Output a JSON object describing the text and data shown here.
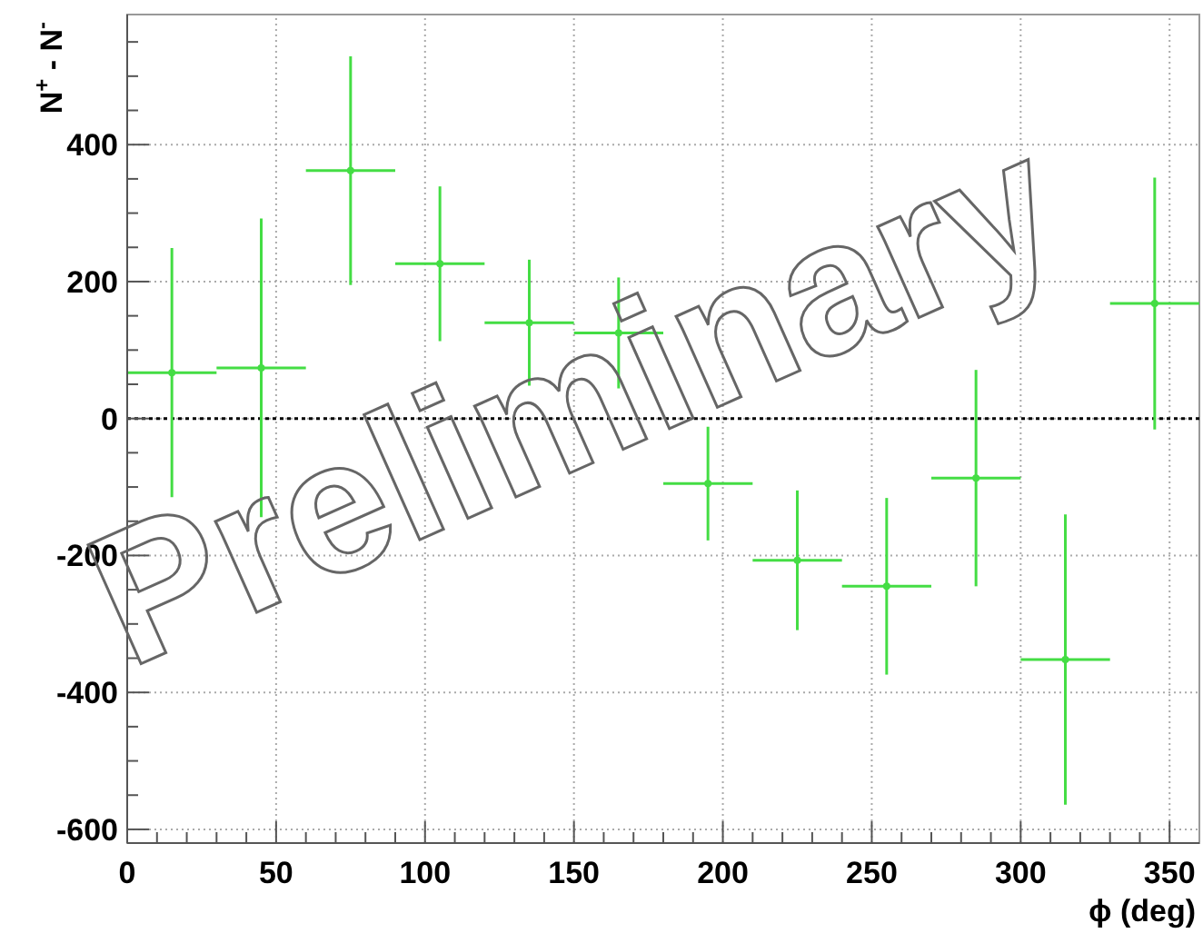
{
  "chart_data": {
    "type": "scatter",
    "xlabel": "ϕ (deg)",
    "ylabel": "N$^{+}$ - N$^{-}$",
    "x": [
      15,
      45,
      75,
      105,
      135,
      165,
      195,
      225,
      255,
      285,
      315,
      345
    ],
    "values": [
      67,
      74,
      362,
      226,
      140,
      125,
      -95,
      -207,
      -245,
      -87,
      -352,
      168
    ],
    "errors": [
      182,
      218,
      167,
      113,
      92,
      81,
      83,
      102,
      129,
      158,
      212,
      184
    ],
    "xerrors": [
      15,
      15,
      15,
      15,
      15,
      15,
      15,
      15,
      15,
      15,
      15,
      15
    ],
    "color": "#44dd44",
    "grid": true,
    "xlim": [
      0,
      360
    ],
    "ylim": [
      -620,
      590
    ],
    "xticks": [
      0,
      {
        "value": 10,
        "label": null
      },
      {
        "value": 20,
        "label": null
      },
      {
        "value": 30,
        "label": null
      },
      {
        "value": 40,
        "label": null
      },
      50,
      {
        "value": 60,
        "label": null
      },
      {
        "value": 70,
        "label": null
      },
      {
        "value": 80,
        "label": null
      },
      {
        "value": 90,
        "label": null
      },
      100,
      {
        "value": 110,
        "label": null
      },
      {
        "value": 120,
        "label": null
      },
      {
        "value": 130,
        "label": null
      },
      {
        "value": 140,
        "label": null
      },
      150,
      {
        "value": 160,
        "label": null
      },
      {
        "value": 170,
        "label": null
      },
      {
        "value": 180,
        "label": null
      },
      {
        "value": 190,
        "label": null
      },
      200,
      {
        "value": 210,
        "label": null
      },
      {
        "value": 220,
        "label": null
      },
      {
        "value": 230,
        "label": null
      },
      {
        "value": 240,
        "label": null
      },
      250,
      {
        "value": 260,
        "label": null
      },
      {
        "value": 270,
        "label": null
      },
      {
        "value": 280,
        "label": null
      },
      {
        "value": 290,
        "label": null
      },
      300,
      {
        "value": 310,
        "label": null
      },
      {
        "value": 320,
        "label": null
      },
      {
        "value": 330,
        "label": null
      },
      {
        "value": 340,
        "label": null
      },
      350
    ],
    "yticks": [
      -600,
      {
        "value": -550,
        "label": null
      },
      {
        "value": -500,
        "label": null
      },
      {
        "value": -450,
        "label": null
      },
      -400,
      {
        "value": -350,
        "label": null
      },
      {
        "value": -300,
        "label": null
      },
      {
        "value": -250,
        "label": null
      },
      -200,
      {
        "value": -150,
        "label": null
      },
      {
        "value": -100,
        "label": null
      },
      {
        "value": -50,
        "label": null
      },
      0,
      {
        "value": 50,
        "label": null
      },
      {
        "value": 100,
        "label": null
      },
      {
        "value": 150,
        "label": null
      },
      200,
      {
        "value": 250,
        "label": null
      },
      {
        "value": 300,
        "label": null
      },
      {
        "value": 350,
        "label": null
      },
      400,
      {
        "value": 450,
        "label": null
      },
      {
        "value": 500,
        "label": null
      },
      {
        "value": 550,
        "label": null
      }
    ],
    "ref_lines": [
      {
        "axis": "y",
        "value": 0,
        "color": "#000000",
        "line_style": "dotted"
      }
    ],
    "annotations": [
      "Preliminary"
    ]
  }
}
